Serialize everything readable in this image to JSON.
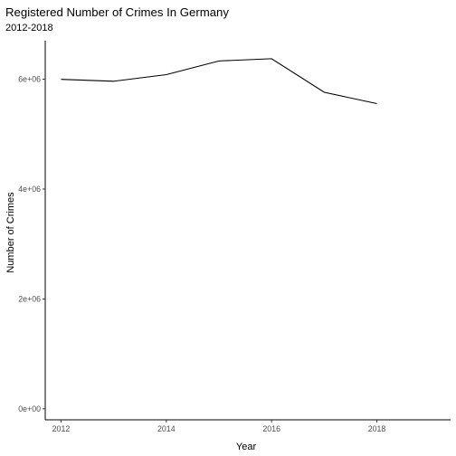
{
  "chart_data": {
    "type": "line",
    "title": "Registered Number of Crimes In Germany",
    "subtitle": "2012-2018",
    "xlabel": "Year",
    "ylabel": "Number of Crimes",
    "x": [
      2012,
      2013,
      2014,
      2015,
      2016,
      2017,
      2018
    ],
    "values": [
      5997000,
      5961700,
      6082100,
      6330600,
      6372500,
      5761900,
      5555500
    ],
    "xlim": [
      2011.7,
      2019.4
    ],
    "ylim": [
      -200000,
      6700000
    ],
    "x_ticks": [
      2012,
      2014,
      2016,
      2018
    ],
    "x_tick_labels": [
      "2012",
      "2014",
      "2016",
      "2018"
    ],
    "y_ticks": [
      0,
      2000000,
      4000000,
      6000000
    ],
    "y_tick_labels": [
      "0e+00",
      "2e+06",
      "4e+06",
      "6e+06"
    ],
    "grid": false,
    "legend": "none",
    "line_color": "#000000"
  }
}
